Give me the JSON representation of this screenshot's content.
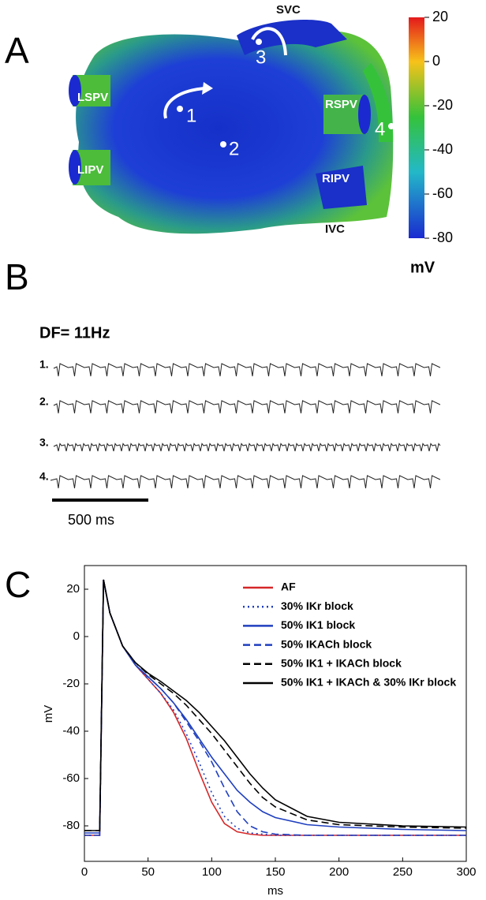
{
  "panel_a": {
    "label": "A",
    "regions": [
      "SVC",
      "LSPV",
      "LIPV",
      "RSPV",
      "RIPV",
      "IVC"
    ],
    "sites": [
      "1",
      "2",
      "3",
      "4"
    ],
    "colorbar": {
      "lim": [
        -80,
        20
      ],
      "ticks": [
        20,
        0,
        -20,
        -40,
        -60,
        -80
      ],
      "unit": "mV"
    }
  },
  "panel_b": {
    "label": "B",
    "dominant_frequency": "DF= 11Hz",
    "traces": [
      "1.",
      "2.",
      "3.",
      "4."
    ],
    "scale_bar": "500 ms"
  },
  "chart_data": {
    "type": "line",
    "panel_label": "C",
    "xlabel": "ms",
    "ylabel": "mV",
    "x": [
      0,
      12,
      15,
      20,
      30,
      40,
      50,
      60,
      70,
      80,
      90,
      100,
      110,
      120,
      130,
      140,
      150,
      175,
      200,
      250,
      300
    ],
    "xlim": [
      0,
      300
    ],
    "xticks": [
      0,
      50,
      100,
      150,
      200,
      250,
      300
    ],
    "ylim": [
      -95,
      30
    ],
    "yticks": [
      20,
      0,
      -20,
      -40,
      -60,
      -80
    ],
    "series": [
      {
        "name": "AF",
        "color": "#d62728",
        "style": "solid",
        "values": [
          -84,
          -84,
          24,
          10,
          -4,
          -12,
          -18,
          -24,
          -32,
          -43,
          -57,
          -70,
          -79,
          -82.5,
          -83.5,
          -84,
          -84,
          -84,
          -84,
          -84,
          -84
        ]
      },
      {
        "name": "30% IKr block",
        "color": "#1f3fbf",
        "style": "dotted",
        "values": [
          -84,
          -84,
          24,
          10,
          -4,
          -12,
          -18,
          -24,
          -31,
          -41,
          -53,
          -66,
          -76,
          -81,
          -83,
          -83.5,
          -84,
          -84,
          -84,
          -84,
          -84
        ]
      },
      {
        "name": "50% IK1 block",
        "color": "#1f3fbf",
        "style": "solid",
        "values": [
          -83,
          -83,
          24,
          10,
          -4,
          -12,
          -17,
          -22,
          -28,
          -35,
          -43,
          -51,
          -58,
          -65,
          -70,
          -74,
          -76.5,
          -79.5,
          -80.5,
          -81.5,
          -82
        ]
      },
      {
        "name": "50% IKACh block",
        "color": "#1f3fbf",
        "style": "dashed",
        "values": [
          -84,
          -84,
          24,
          10,
          -4,
          -12,
          -17,
          -22,
          -28,
          -36,
          -44,
          -53,
          -64,
          -74,
          -80,
          -82.5,
          -83.5,
          -84,
          -84,
          -84,
          -84
        ]
      },
      {
        "name": "50% IK1 + IKACh block",
        "color": "#000000",
        "style": "dashed",
        "values": [
          -82,
          -82,
          24,
          10,
          -4,
          -11,
          -16,
          -20,
          -24,
          -29,
          -35,
          -41,
          -48,
          -55,
          -62,
          -68,
          -72,
          -77.5,
          -79.5,
          -80.5,
          -81
        ]
      },
      {
        "name": "50% IK1 + IKACh & 30% IKr block",
        "color": "#000000",
        "style": "solid",
        "values": [
          -82,
          -82,
          24,
          10,
          -4,
          -11,
          -15.5,
          -19,
          -23,
          -27,
          -32,
          -38,
          -44,
          -51,
          -58,
          -64,
          -69,
          -76,
          -78.5,
          -80,
          -80.5
        ]
      }
    ]
  }
}
